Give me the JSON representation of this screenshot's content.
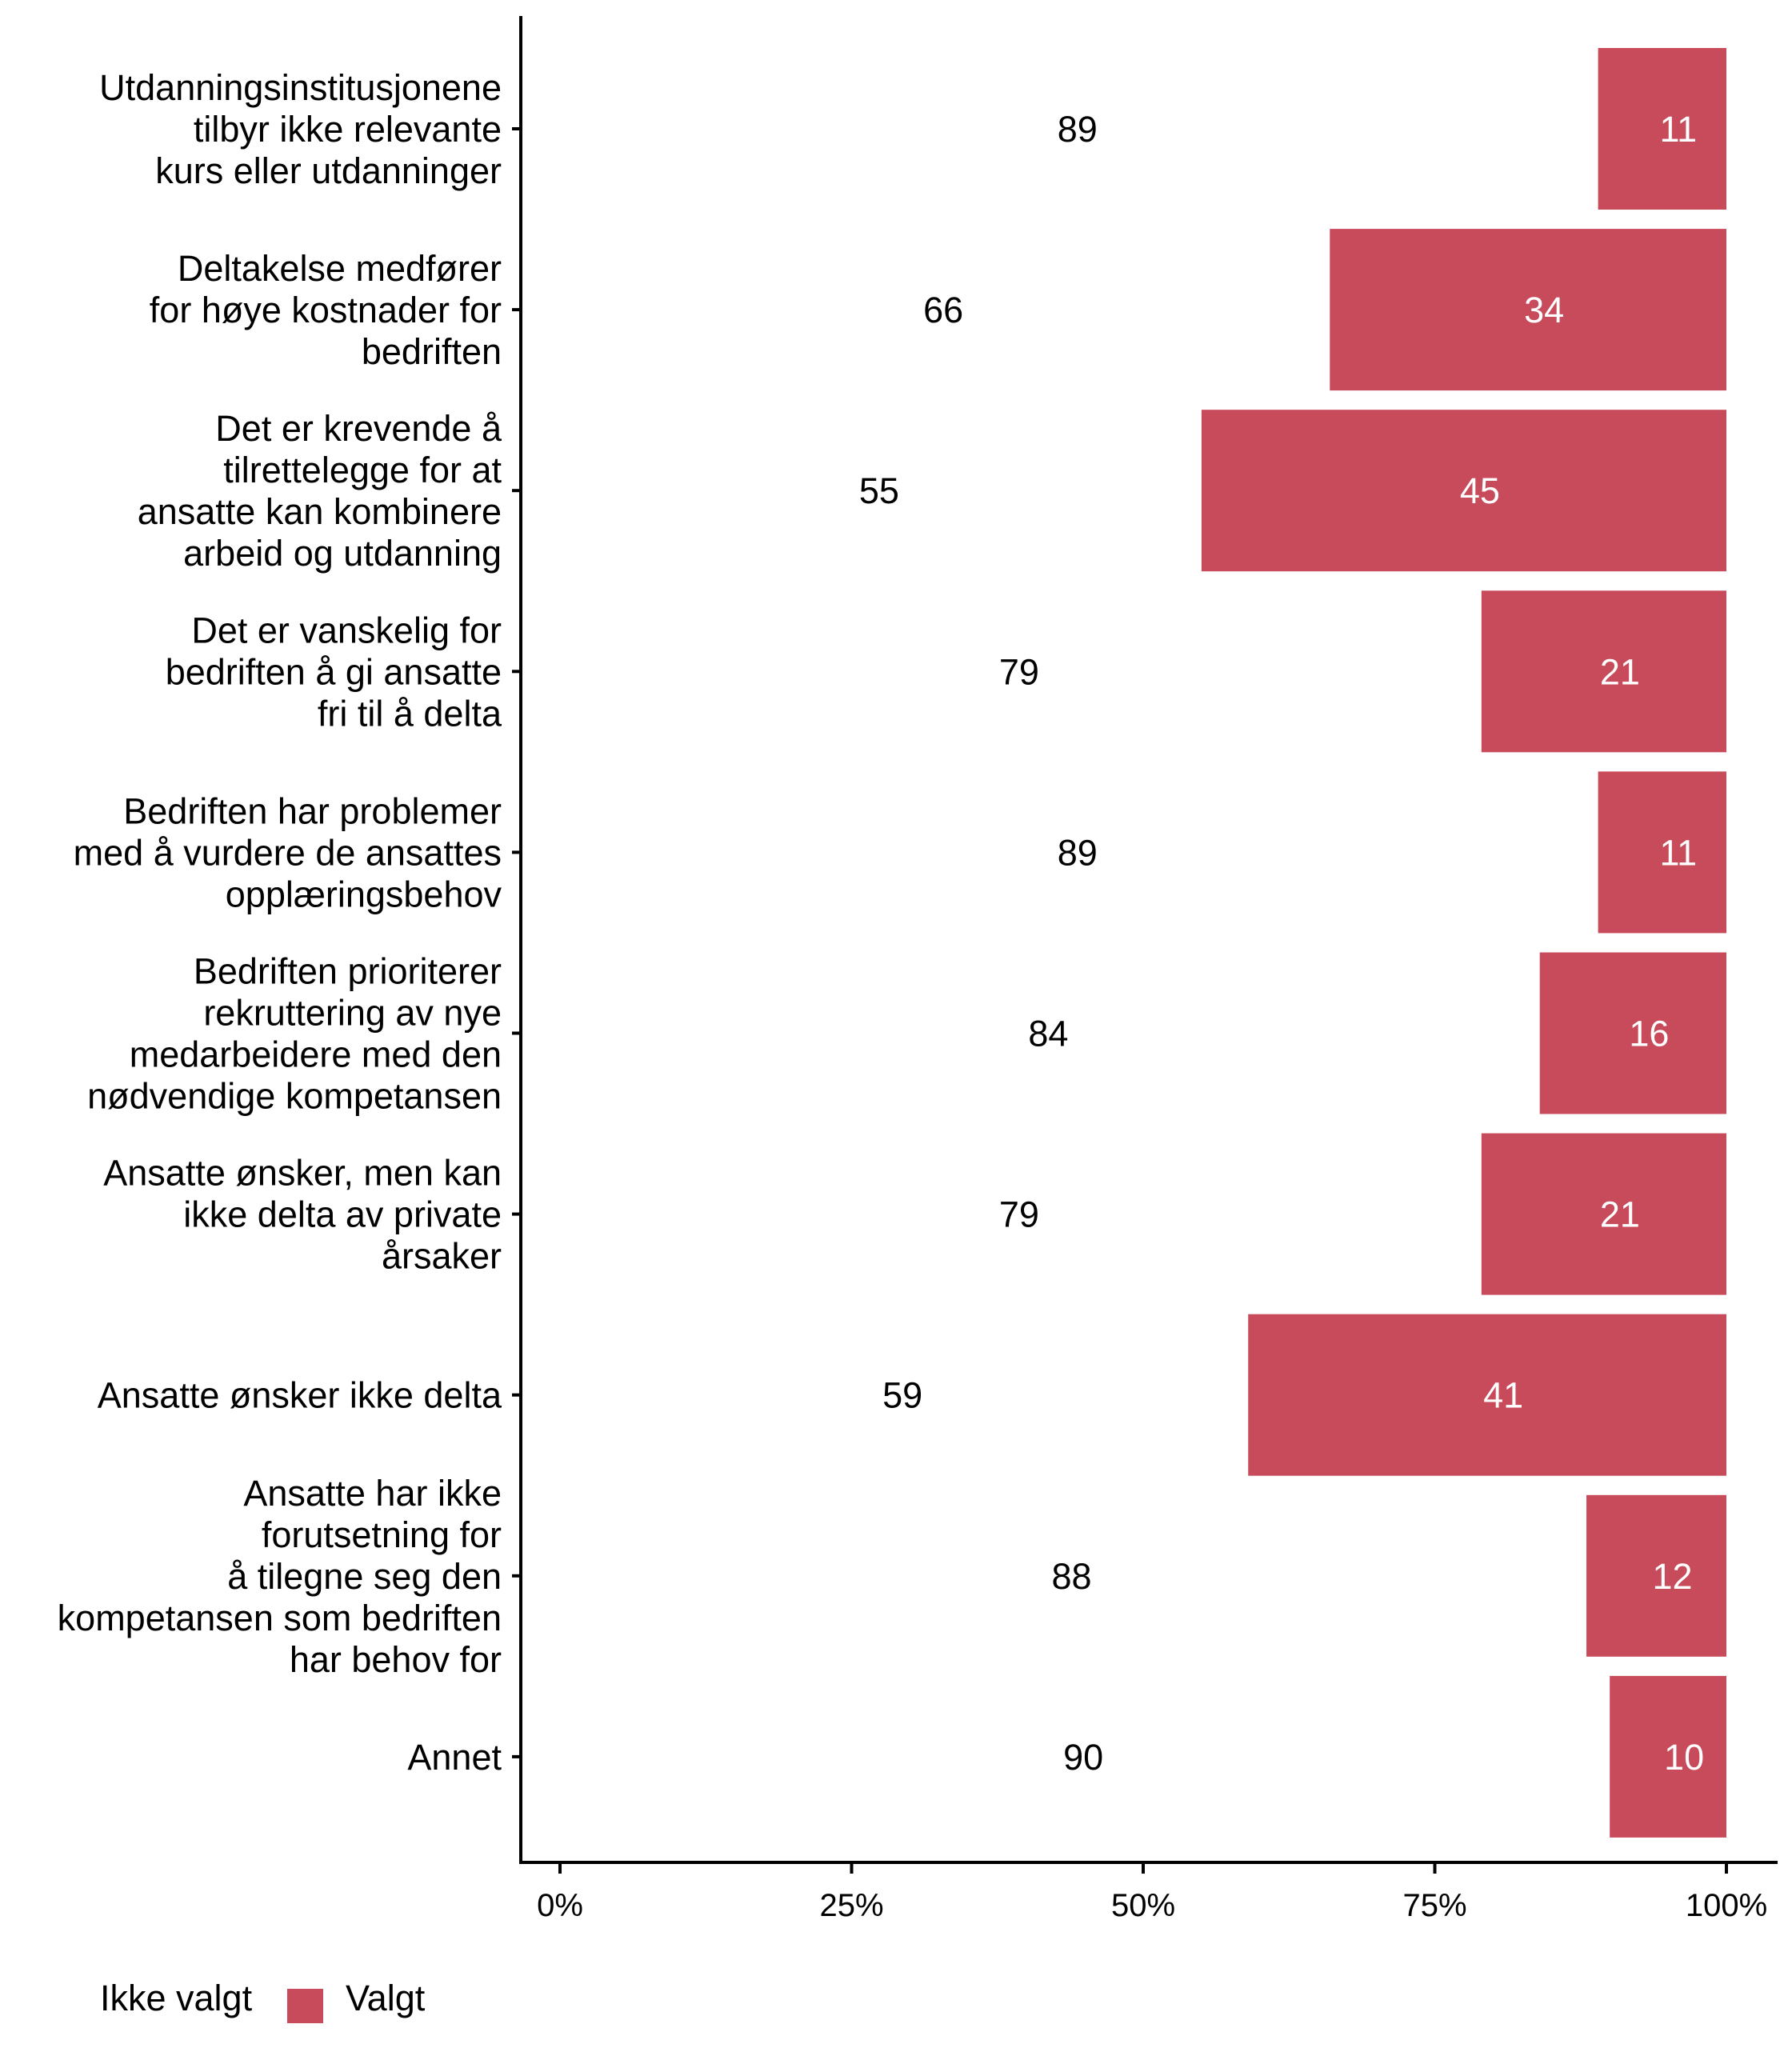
{
  "chart_data": {
    "type": "bar",
    "orientation": "horizontal",
    "stacked": true,
    "title": "",
    "xlabel": "",
    "ylabel": "",
    "xlim": [
      0,
      100
    ],
    "x_ticks": [
      "0%",
      "25%",
      "50%",
      "75%",
      "100%"
    ],
    "x_tick_values": [
      0,
      25,
      50,
      75,
      100
    ],
    "grid": false,
    "legend_position": "bottom-left",
    "categories": [
      [
        "Utdanningsinstitusjonene",
        "tilbyr ikke relevante",
        "kurs eller utdanninger"
      ],
      [
        "Deltakelse medfører",
        "for høye kostnader for",
        "bedriften"
      ],
      [
        "Det er krevende å",
        "tilrettelegge for at",
        "ansatte kan kombinere",
        "arbeid og utdanning"
      ],
      [
        "Det er vanskelig for",
        "bedriften å gi ansatte",
        "fri til å delta"
      ],
      [
        "Bedriften har problemer",
        "med å vurdere de ansattes",
        "opplæringsbehov"
      ],
      [
        "Bedriften prioriterer",
        "rekruttering av nye",
        "medarbeidere med den",
        "nødvendige kompetansen"
      ],
      [
        "Ansatte ønsker, men kan",
        "ikke delta av private",
        "årsaker"
      ],
      [
        "Ansatte ønsker ikke delta"
      ],
      [
        "Ansatte har ikke",
        "forutsetning for",
        "å tilegne seg den",
        "kompetansen som bedriften",
        "har behov for"
      ],
      [
        "Annet"
      ]
    ],
    "series": [
      {
        "name": "Ikke valgt",
        "color": "#FFFFFF",
        "values": [
          89,
          66,
          55,
          79,
          89,
          84,
          79,
          59,
          88,
          90
        ]
      },
      {
        "name": "Valgt",
        "color": "#C84B5B",
        "values": [
          11,
          34,
          45,
          21,
          11,
          16,
          21,
          41,
          12,
          10
        ]
      }
    ]
  }
}
